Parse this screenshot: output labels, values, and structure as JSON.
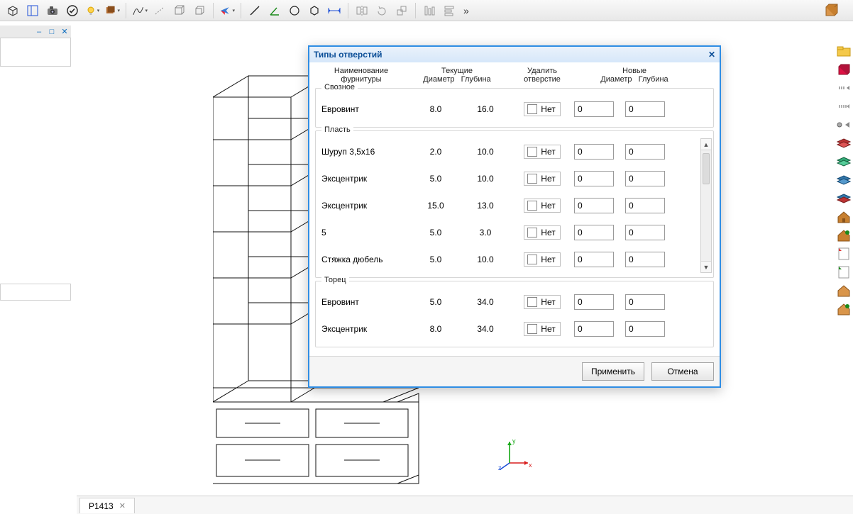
{
  "colors": {
    "dialog_border": "#2f8de4",
    "title_text": "#0b4e97",
    "axis_x": "#d81e1e",
    "axis_y": "#17a817",
    "axis_z": "#1e50d8"
  },
  "tab": {
    "label": "P1413"
  },
  "toolbar": {
    "more": "»"
  },
  "gizmo": {
    "x": "x",
    "y": "y",
    "z": "z"
  },
  "dialog": {
    "title": "Типы отверстий",
    "header": {
      "name_l1": "Наименование",
      "name_l2": "фурнитуры",
      "current_l1": "Текущие",
      "current_dia": "Диаметр",
      "current_depth": "Глубина",
      "delete_l1": "Удалить",
      "delete_l2": "отверстие",
      "new_l1": "Новые",
      "new_dia": "Диаметр",
      "new_depth": "Глубина"
    },
    "checkbox_label": "Нет",
    "groups": [
      {
        "label": "Свозное",
        "scroll": false,
        "rows": [
          {
            "name": "Евровинт",
            "dia": "8.0",
            "depth": "16.0",
            "new_dia": "0",
            "new_depth": "0"
          }
        ]
      },
      {
        "label": "Пласть",
        "scroll": true,
        "rows": [
          {
            "name": "Шуруп 3,5x16",
            "dia": "2.0",
            "depth": "10.0",
            "new_dia": "0",
            "new_depth": "0"
          },
          {
            "name": "Эксцентрик",
            "dia": "5.0",
            "depth": "10.0",
            "new_dia": "0",
            "new_depth": "0"
          },
          {
            "name": "Эксцентрик",
            "dia": "15.0",
            "depth": "13.0",
            "new_dia": "0",
            "new_depth": "0"
          },
          {
            "name": "5",
            "dia": "5.0",
            "depth": "3.0",
            "new_dia": "0",
            "new_depth": "0"
          },
          {
            "name": "Стяжка дюбель",
            "dia": "5.0",
            "depth": "10.0",
            "new_dia": "0",
            "new_depth": "0"
          }
        ]
      },
      {
        "label": "Торец",
        "scroll": false,
        "rows": [
          {
            "name": "Евровинт",
            "dia": "5.0",
            "depth": "34.0",
            "new_dia": "0",
            "new_depth": "0"
          },
          {
            "name": "Эксцентрик",
            "dia": "8.0",
            "depth": "34.0",
            "new_dia": "0",
            "new_depth": "0"
          }
        ]
      }
    ],
    "buttons": {
      "apply": "Применить",
      "cancel": "Отмена"
    }
  }
}
